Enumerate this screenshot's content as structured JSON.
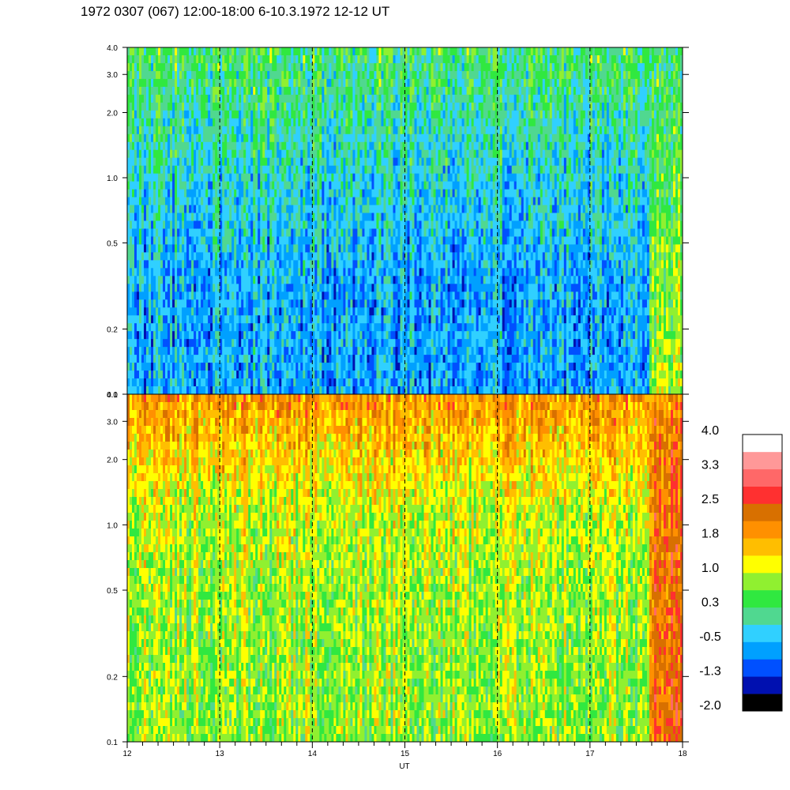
{
  "title": "1972 0307 (067) 12:00-18:00 6-10.3.1972  12-12 UT",
  "chart_data": [
    {
      "type": "heatmap",
      "panel": "upper",
      "xlabel": "",
      "x_ticks": [
        "12",
        "13",
        "14",
        "15",
        "16",
        "17",
        "18"
      ],
      "xlim": [
        12,
        18
      ],
      "ylim": [
        0.1,
        4.0
      ],
      "y_scale": "log",
      "y_ticks": [
        "0.1",
        "0.2",
        "0.5",
        "1.0",
        "2.0",
        "3.0",
        "4.0"
      ],
      "dashed_vertical_lines_at": [
        13,
        14,
        15,
        16,
        17
      ],
      "dominant_levels": {
        "high_freq": 0.3,
        "mid_freq": -0.2,
        "low_freq": -0.6,
        "late_segment_17_6_to_18": 0.6
      }
    },
    {
      "type": "heatmap",
      "panel": "lower",
      "xlabel": "UT",
      "x_ticks": [
        "12",
        "13",
        "14",
        "15",
        "16",
        "17",
        "18"
      ],
      "xlim": [
        12,
        18
      ],
      "ylim": [
        0.1,
        4.0
      ],
      "y_scale": "log",
      "y_ticks": [
        "0.1",
        "0.2",
        "0.5",
        "1.0",
        "2.0",
        "3.0",
        "4.0"
      ],
      "dashed_vertical_lines_at": [
        13,
        14,
        15,
        16,
        17
      ],
      "dominant_levels": {
        "high_freq": 1.9,
        "mid_freq": 1.0,
        "low_freq": 0.8,
        "late_segment_17_6_to_18": 2.1
      }
    }
  ],
  "colorbar": {
    "labels": [
      "4.0",
      "3.3",
      "2.5",
      "1.8",
      "1.0",
      "0.3",
      "-0.5",
      "-1.3",
      "-2.0"
    ],
    "range": [
      -2.0,
      4.0
    ],
    "colors": [
      "#000000",
      "#0010b0",
      "#0050ff",
      "#00a0ff",
      "#30d0ff",
      "#50d890",
      "#30e840",
      "#90f030",
      "#ffff00",
      "#ffbe00",
      "#ff9000",
      "#d87000",
      "#ff3030",
      "#ff6868",
      "#ff9898",
      "#ffffff"
    ]
  }
}
